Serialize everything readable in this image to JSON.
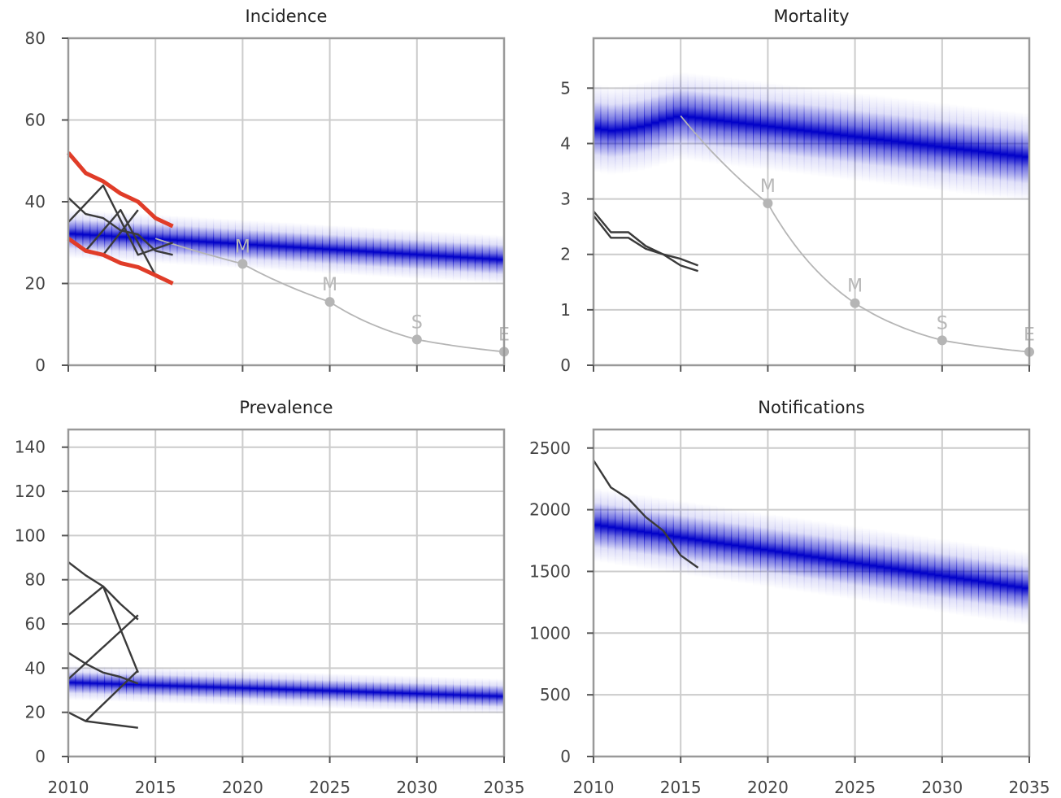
{
  "colors": {
    "band": "#0000c8",
    "data_line": "#3a3a3a",
    "bounds_line": "#e03c28",
    "milestone": "#b5b5b5",
    "grid": "#cccccc",
    "spine": "#999999"
  },
  "chart_data": [
    {
      "type": "line",
      "title": "Incidence",
      "xlim": [
        2010,
        2035
      ],
      "ylim": [
        0,
        80
      ],
      "xticks": [
        "2010",
        "2015",
        "2020",
        "2025",
        "2030",
        "2035"
      ],
      "yticks": [
        "0",
        "20",
        "40",
        "60",
        "80"
      ],
      "grid": true,
      "projection_band": {
        "x": [
          2010,
          2035
        ],
        "center": [
          32.2,
          25.8
        ],
        "width": 6
      },
      "series": [
        {
          "role": "observed",
          "x": [
            2010,
            2011,
            2012,
            2013,
            2014,
            2015,
            2016
          ],
          "values": [
            41,
            37,
            36,
            33,
            32,
            28,
            27
          ]
        },
        {
          "role": "observed",
          "x": [
            2010,
            2012,
            2014,
            2016
          ],
          "values": [
            35,
            44,
            27,
            30
          ]
        },
        {
          "role": "observed",
          "x": [
            2011,
            2013,
            2015
          ],
          "values": [
            28,
            38,
            22
          ]
        },
        {
          "role": "observed",
          "x": [
            2012,
            2014
          ],
          "values": [
            27,
            38
          ]
        },
        {
          "role": "upper-bound",
          "x": [
            2010,
            2011,
            2012,
            2013,
            2014,
            2015,
            2016
          ],
          "values": [
            52,
            47,
            45,
            42,
            40,
            36,
            34
          ]
        },
        {
          "role": "lower-bound",
          "x": [
            2010,
            2011,
            2012,
            2013,
            2014,
            2015,
            2016
          ],
          "values": [
            31,
            28,
            27,
            25,
            24,
            22,
            20
          ]
        }
      ],
      "milestone_curve": {
        "x": [
          2015,
          2020,
          2025,
          2030,
          2035
        ],
        "values": [
          31,
          24.8,
          15.5,
          6.3,
          3.3
        ]
      },
      "milestones": [
        {
          "label": "M",
          "x": 2020,
          "y": 24.8
        },
        {
          "label": "M",
          "x": 2025,
          "y": 15.5
        },
        {
          "label": "S",
          "x": 2030,
          "y": 6.3
        },
        {
          "label": "E",
          "x": 2035,
          "y": 3.3
        }
      ]
    },
    {
      "type": "line",
      "title": "Mortality",
      "xlim": [
        2010,
        2035
      ],
      "ylim": [
        0,
        5.9
      ],
      "xticks": [
        "2010",
        "2015",
        "2020",
        "2025",
        "2030",
        "2035"
      ],
      "yticks": [
        "0",
        "1",
        "2",
        "3",
        "4",
        "5"
      ],
      "grid": true,
      "projection_band": {
        "x": [
          2010,
          2011,
          2012,
          2013,
          2014,
          2015,
          2035
        ],
        "center": [
          4.28,
          4.23,
          4.26,
          4.32,
          4.42,
          4.5,
          3.75
        ],
        "width": 0.8
      },
      "series": [
        {
          "role": "observed",
          "x": [
            2010,
            2011,
            2012,
            2013,
            2014,
            2015,
            2016
          ],
          "values": [
            2.78,
            2.4,
            2.4,
            2.15,
            2.0,
            1.92,
            1.8
          ]
        },
        {
          "role": "observed",
          "x": [
            2010,
            2011,
            2012,
            2013,
            2014,
            2015,
            2016
          ],
          "values": [
            2.7,
            2.3,
            2.3,
            2.1,
            2.0,
            1.8,
            1.7
          ]
        }
      ],
      "milestone_curve": {
        "x": [
          2015,
          2020,
          2025,
          2030,
          2035
        ],
        "values": [
          4.5,
          2.92,
          1.12,
          0.45,
          0.24
        ]
      },
      "milestones": [
        {
          "label": "M",
          "x": 2020,
          "y": 2.92
        },
        {
          "label": "M",
          "x": 2025,
          "y": 1.12
        },
        {
          "label": "S",
          "x": 2030,
          "y": 0.45
        },
        {
          "label": "E",
          "x": 2035,
          "y": 0.24
        }
      ]
    },
    {
      "type": "line",
      "title": "Prevalence",
      "xlim": [
        2010,
        2035
      ],
      "ylim": [
        0,
        148
      ],
      "xticks": [
        "2010",
        "2015",
        "2020",
        "2025",
        "2030",
        "2035"
      ],
      "yticks": [
        "0",
        "20",
        "40",
        "60",
        "80",
        "100",
        "120",
        "140"
      ],
      "grid": true,
      "projection_band": {
        "x": [
          2010,
          2035
        ],
        "center": [
          33.5,
          27.2
        ],
        "width": 8
      },
      "series": [
        {
          "role": "observed",
          "x": [
            2010,
            2011,
            2012,
            2013,
            2014
          ],
          "values": [
            88,
            82,
            77,
            69,
            62
          ]
        },
        {
          "role": "observed",
          "x": [
            2010,
            2011,
            2012,
            2013,
            2014
          ],
          "values": [
            47,
            42,
            38,
            36,
            33
          ]
        },
        {
          "role": "observed",
          "x": [
            2010,
            2011,
            2012,
            2013,
            2014
          ],
          "values": [
            20,
            16,
            15,
            14,
            13
          ]
        },
        {
          "role": "observed",
          "x": [
            2010,
            2012,
            2014
          ],
          "values": [
            64,
            77,
            38
          ]
        },
        {
          "role": "observed",
          "x": [
            2010,
            2014
          ],
          "values": [
            35,
            64
          ]
        },
        {
          "role": "observed",
          "x": [
            2011,
            2014
          ],
          "values": [
            16,
            39
          ]
        }
      ]
    },
    {
      "type": "line",
      "title": "Notifications",
      "xlim": [
        2010,
        2035
      ],
      "ylim": [
        0,
        2650
      ],
      "xticks": [
        "2010",
        "2015",
        "2020",
        "2025",
        "2030",
        "2035"
      ],
      "yticks": [
        "0",
        "500",
        "1000",
        "1500",
        "2000",
        "2500"
      ],
      "grid": true,
      "projection_band": {
        "x": [
          2010,
          2035
        ],
        "center": [
          1880,
          1360
        ],
        "width": 300
      },
      "series": [
        {
          "role": "observed",
          "x": [
            2010,
            2011,
            2012,
            2013,
            2014,
            2015,
            2016
          ],
          "values": [
            2400,
            2180,
            2090,
            1940,
            1830,
            1630,
            1530
          ]
        }
      ]
    }
  ]
}
